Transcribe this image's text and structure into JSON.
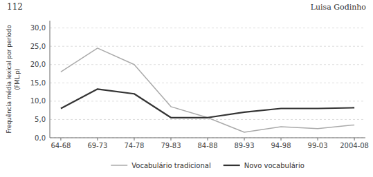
{
  "chart_data": {
    "type": "line",
    "annotations": [
      "112",
      "Luisa Godinho"
    ],
    "ylabel": "Frequência média lexical por período\n(FML.p)",
    "categories": [
      "64-68",
      "69-73",
      "74-78",
      "79-83",
      "84-88",
      "89-93",
      "94-98",
      "99-03",
      "2004-08"
    ],
    "series": [
      {
        "name": "Vocabulário tradicional",
        "color": "#aaaaaa",
        "values": [
          18.0,
          24.5,
          20.0,
          8.5,
          5.5,
          1.5,
          3.0,
          2.5,
          3.5
        ]
      },
      {
        "name": "Novo vocabulário",
        "color": "#333333",
        "values": [
          8.0,
          13.3,
          12.0,
          5.5,
          5.5,
          7.0,
          8.0,
          8.0,
          8.2
        ]
      }
    ],
    "ylim": [
      0,
      32
    ],
    "yticks": [
      {
        "value": 0.0,
        "label": "0,0"
      },
      {
        "value": 5.0,
        "label": "5,0"
      },
      {
        "value": 10.0,
        "label": "10,0"
      },
      {
        "value": 15.0,
        "label": "15,0"
      },
      {
        "value": 20.0,
        "label": "20,0"
      },
      {
        "value": 25.0,
        "label": "25,0"
      },
      {
        "value": 30.0,
        "label": "30,0"
      }
    ],
    "grid": true,
    "legend": "bottom"
  }
}
